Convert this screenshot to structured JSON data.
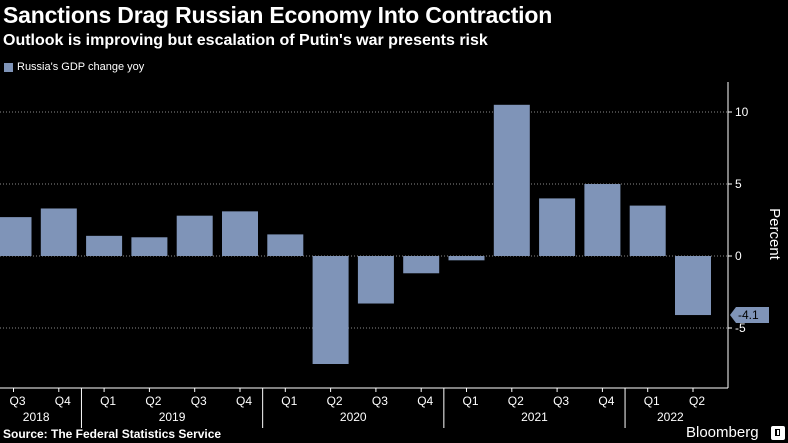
{
  "header": {
    "title": "Sanctions Drag Russian Economy Into Contraction",
    "subtitle": "Outlook is improving but escalation of Putin's war presents risk"
  },
  "footer": {
    "source": "Source: The Federal Statistics Service",
    "brand": "Bloomberg"
  },
  "colors": {
    "bar": "#7f94b8",
    "background": "#000000",
    "gridline": "#8a8a8a",
    "text": "#ffffff"
  },
  "chart_data": {
    "type": "bar",
    "legend": {
      "label": "Russia's GDP change yoy",
      "position": "top-left"
    },
    "categories": [
      "Q3",
      "Q4",
      "Q1",
      "Q2",
      "Q3",
      "Q4",
      "Q1",
      "Q2",
      "Q3",
      "Q4",
      "Q1",
      "Q2",
      "Q3",
      "Q4",
      "Q1",
      "Q2"
    ],
    "years": [
      {
        "label": "2018",
        "start": 0,
        "end": 1
      },
      {
        "label": "2019",
        "start": 2,
        "end": 5
      },
      {
        "label": "2020",
        "start": 6,
        "end": 9
      },
      {
        "label": "2021",
        "start": 10,
        "end": 13
      },
      {
        "label": "2022",
        "start": 14,
        "end": 15
      }
    ],
    "series": [
      {
        "name": "Russia's GDP change yoy",
        "values": [
          2.7,
          3.3,
          1.4,
          1.3,
          2.8,
          3.1,
          1.5,
          -7.5,
          -3.3,
          -1.2,
          -0.3,
          10.5,
          4.0,
          5.0,
          3.5,
          -4.1
        ]
      }
    ],
    "last_value_label": "-4.1",
    "ylabel": "Percent",
    "ylim": [
      -9,
      12
    ],
    "yticks": [
      -5,
      0,
      5,
      10
    ],
    "grid": "horizontal"
  }
}
